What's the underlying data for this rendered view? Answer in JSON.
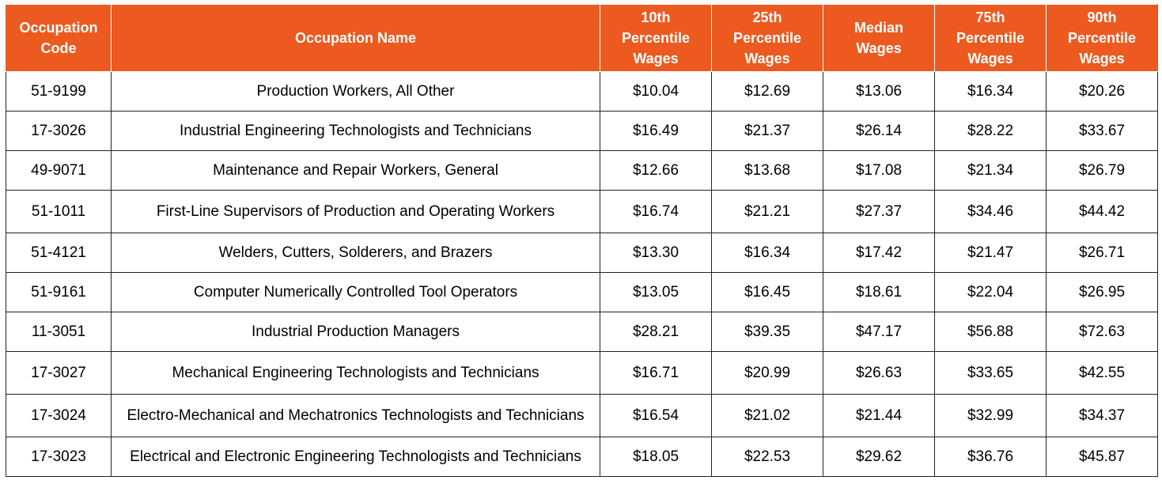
{
  "table": {
    "headers": [
      "Occupation\nCode",
      "Occupation Name",
      "10th\nPercentile\nWages",
      "25th\nPercentile\nWages",
      "Median\nWages",
      "75th\nPercentile\nWages",
      "90th\nPercentile\nWages"
    ],
    "rows": [
      [
        "51-9199",
        "Production Workers, All Other",
        "$10.04",
        "$12.69",
        "$13.06",
        "$16.34",
        "$20.26"
      ],
      [
        "17-3026",
        "Industrial Engineering Technologists and Technicians",
        "$16.49",
        "$21.37",
        "$26.14",
        "$28.22",
        "$33.67"
      ],
      [
        "49-9071",
        "Maintenance and Repair Workers, General",
        "$12.66",
        "$13.68",
        "$17.08",
        "$21.34",
        "$26.79"
      ],
      [
        "51-1011",
        "First-Line Supervisors of Production and Operating Workers",
        "$16.74",
        "$21.21",
        "$27.37",
        "$34.46",
        "$44.42"
      ],
      [
        "51-4121",
        "Welders, Cutters, Solderers, and Brazers",
        "$13.30",
        "$16.34",
        "$17.42",
        "$21.47",
        "$26.71"
      ],
      [
        "51-9161",
        "Computer Numerically Controlled Tool Operators",
        "$13.05",
        "$16.45",
        "$18.61",
        "$22.04",
        "$26.95"
      ],
      [
        "11-3051",
        "Industrial Production Managers",
        "$28.21",
        "$39.35",
        "$47.17",
        "$56.88",
        "$72.63"
      ],
      [
        "17-3027",
        "Mechanical Engineering Technologists and Technicians",
        "$16.71",
        "$20.99",
        "$26.63",
        "$33.65",
        "$42.55"
      ],
      [
        "17-3024",
        "Electro-Mechanical and Mechatronics Technologists and Technicians",
        "$16.54",
        "$21.02",
        "$21.44",
        "$32.99",
        "$34.37"
      ],
      [
        "17-3023",
        "Electrical and Electronic Engineering Technologists and Technicians",
        "$18.05",
        "$22.53",
        "$29.62",
        "$36.76",
        "$45.87"
      ]
    ]
  },
  "colors": {
    "header_background": "#ec5a20",
    "header_text": "#ffffff",
    "grid_lines": "#222222"
  }
}
